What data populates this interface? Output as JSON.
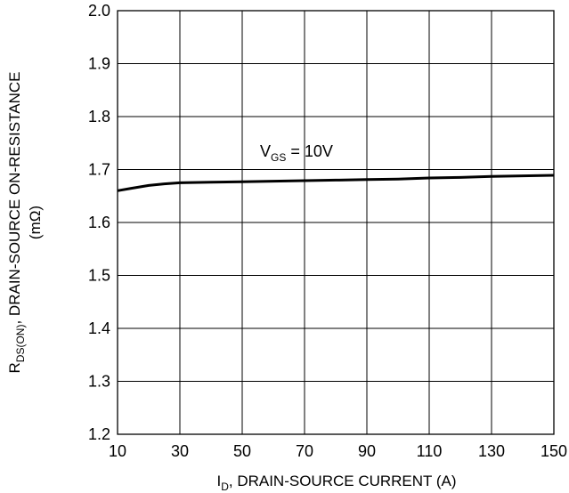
{
  "chart_data": {
    "type": "line",
    "title": "",
    "xlabel": {
      "main": "I",
      "sub": "D",
      "rest": ", DRAIN-SOURCE CURRENT (A)"
    },
    "ylabel": {
      "main": "R",
      "sub": "DS(ON)",
      "rest": ", DRAIN-SOURCE ON-RESISTANCE",
      "unit": "(mΩ)"
    },
    "xlim": [
      10,
      150
    ],
    "ylim": [
      1.2,
      2.0
    ],
    "x_ticks": [
      "10",
      "30",
      "50",
      "70",
      "90",
      "110",
      "130",
      "150"
    ],
    "y_ticks": [
      "2.0",
      "1.9",
      "1.8",
      "1.7",
      "1.6",
      "1.5",
      "1.4",
      "1.3",
      "1.2"
    ],
    "grid": true,
    "line_color": "#000000",
    "annotation": {
      "main": "V",
      "sub": "GS",
      "rest": " = 10V"
    },
    "series": [
      {
        "x": [
          10,
          14,
          20,
          25,
          30,
          40,
          50,
          60,
          70,
          80,
          90,
          100,
          110,
          120,
          130,
          140,
          150
        ],
        "y": [
          1.66,
          1.664,
          1.67,
          1.673,
          1.675,
          1.676,
          1.677,
          1.678,
          1.679,
          1.68,
          1.681,
          1.682,
          1.684,
          1.685,
          1.687,
          1.688,
          1.689
        ]
      }
    ]
  }
}
